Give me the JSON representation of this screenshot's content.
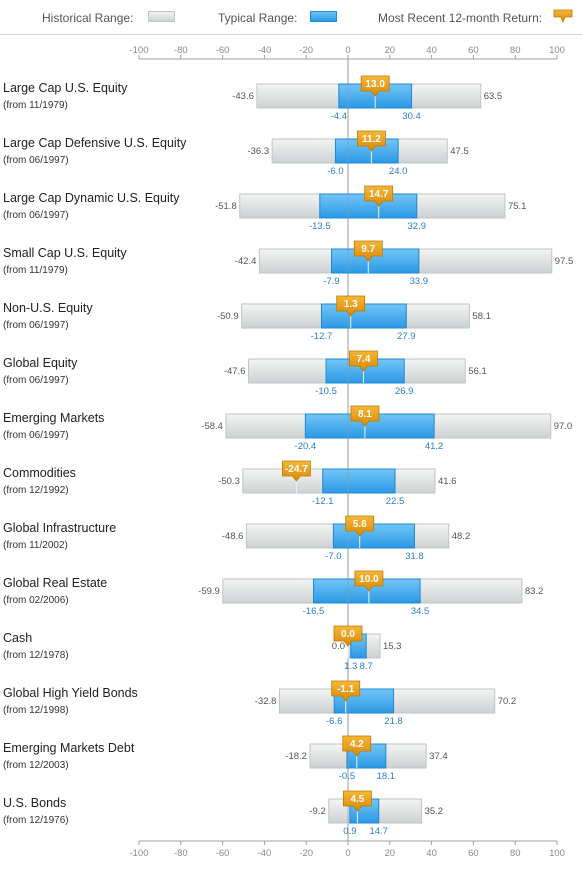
{
  "legend": {
    "historical": "Historical Range:",
    "typical": "Typical Range:",
    "recent": "Most Recent 12-month Return:"
  },
  "colors": {
    "historical": "#d7dbdb",
    "typical": "#3aa9f0",
    "recent": "#e89b0c",
    "axis": "#999999"
  },
  "chart_data": {
    "type": "bar",
    "orientation": "horizontal-range",
    "xlim": [
      -100,
      100
    ],
    "ticks": [
      -100,
      -80,
      -60,
      -40,
      -20,
      0,
      20,
      40,
      60,
      80,
      100
    ],
    "legend": [
      "Historical Range:",
      "Typical Range:",
      "Most Recent 12-month Return:"
    ],
    "categories": [
      {
        "name": "Large Cap U.S. Equity",
        "since": "(from 11/1979)",
        "hist": [
          -43.6,
          63.5
        ],
        "typical": [
          -4.4,
          30.4
        ],
        "recent": 13.0,
        "recent_label": "13.0",
        "hist_labels": [
          "-43.6",
          "63.5"
        ],
        "typical_labels": [
          "-4.4",
          "30.4"
        ]
      },
      {
        "name": "Large Cap Defensive U.S. Equity",
        "since": "(from 06/1997)",
        "hist": [
          -36.3,
          47.5
        ],
        "typical": [
          -6.0,
          24.0
        ],
        "recent": 11.2,
        "recent_label": "11.2",
        "hist_labels": [
          "-36.3",
          "47.5"
        ],
        "typical_labels": [
          "-6.0",
          "24.0"
        ]
      },
      {
        "name": "Large Cap Dynamic U.S. Equity",
        "since": "(from 06/1997)",
        "hist": [
          -51.8,
          75.1
        ],
        "typical": [
          -13.5,
          32.9
        ],
        "recent": 14.7,
        "recent_label": "14.7",
        "hist_labels": [
          "-51.8",
          "75.1"
        ],
        "typical_labels": [
          "-13.5",
          "32.9"
        ]
      },
      {
        "name": "Small Cap U.S. Equity",
        "since": "(from 11/1979)",
        "hist": [
          -42.4,
          97.5
        ],
        "typical": [
          -7.9,
          33.9
        ],
        "recent": 9.7,
        "recent_label": "9.7",
        "hist_labels": [
          "-42.4",
          "97.5"
        ],
        "typical_labels": [
          "-7.9",
          "33.9"
        ]
      },
      {
        "name": "Non-U.S. Equity",
        "since": "(from 06/1997)",
        "hist": [
          -50.9,
          58.1
        ],
        "typical": [
          -12.7,
          27.9
        ],
        "recent": 1.3,
        "recent_label": "1.3",
        "hist_labels": [
          "-50.9",
          "58.1"
        ],
        "typical_labels": [
          "-12.7",
          "27.9"
        ]
      },
      {
        "name": "Global Equity",
        "since": "(from 06/1997)",
        "hist": [
          -47.6,
          56.1
        ],
        "typical": [
          -10.5,
          26.9
        ],
        "recent": 7.4,
        "recent_label": "7.4",
        "hist_labels": [
          "-47.6",
          "56.1"
        ],
        "typical_labels": [
          "-10.5",
          "26.9"
        ]
      },
      {
        "name": "Emerging Markets",
        "since": "(from 06/1997)",
        "hist": [
          -58.4,
          97.0
        ],
        "typical": [
          -20.4,
          41.2
        ],
        "recent": 8.1,
        "recent_label": "8.1",
        "hist_labels": [
          "-58.4",
          "97.0"
        ],
        "typical_labels": [
          "-20.4",
          "41.2"
        ]
      },
      {
        "name": "Commodities",
        "since": "(from 12/1992)",
        "hist": [
          -50.3,
          41.6
        ],
        "typical": [
          -12.1,
          22.5
        ],
        "recent": -24.7,
        "recent_label": "-24.7",
        "hist_labels": [
          "-50.3",
          "41.6"
        ],
        "typical_labels": [
          "-12.1",
          "22.5"
        ]
      },
      {
        "name": "Global Infrastructure",
        "since": "(from 11/2002)",
        "hist": [
          -48.6,
          48.2
        ],
        "typical": [
          -7.0,
          31.8
        ],
        "recent": 5.6,
        "recent_label": "5.6",
        "hist_labels": [
          "-48.6",
          "48.2"
        ],
        "typical_labels": [
          "-7.0",
          "31.8"
        ]
      },
      {
        "name": "Global Real Estate",
        "since": "(from 02/2006)",
        "hist": [
          -59.9,
          83.2
        ],
        "typical": [
          -16.5,
          34.5
        ],
        "recent": 10.0,
        "recent_label": "10.0",
        "hist_labels": [
          "-59.9",
          "83.2"
        ],
        "typical_labels": [
          "-16.5",
          "34.5"
        ]
      },
      {
        "name": "Cash",
        "since": "(from 12/1978)",
        "hist": [
          0.0,
          15.3
        ],
        "typical": [
          1.3,
          8.7
        ],
        "recent": 0.0,
        "recent_label": "0.0",
        "hist_labels": [
          "0.0",
          "15.3"
        ],
        "typical_labels": [
          "1.3",
          "8.7"
        ]
      },
      {
        "name": "Global High Yield Bonds",
        "since": "(from 12/1998)",
        "hist": [
          -32.8,
          70.2
        ],
        "typical": [
          -6.6,
          21.8
        ],
        "recent": -1.1,
        "recent_label": "-1.1",
        "hist_labels": [
          "-32.8",
          "70.2"
        ],
        "typical_labels": [
          "-6.6",
          "21.8"
        ]
      },
      {
        "name": "Emerging Markets Debt",
        "since": "(from 12/2003)",
        "hist": [
          -18.2,
          37.4
        ],
        "typical": [
          -0.5,
          18.1
        ],
        "recent": 4.2,
        "recent_label": "4.2",
        "hist_labels": [
          "-18.2",
          "37.4"
        ],
        "typical_labels": [
          "-0.5",
          "18.1"
        ]
      },
      {
        "name": "U.S. Bonds",
        "since": "(from 12/1976)",
        "hist": [
          -9.2,
          35.2
        ],
        "typical": [
          0.9,
          14.7
        ],
        "recent": 4.5,
        "recent_label": "4.5",
        "hist_labels": [
          "-9.2",
          "35.2"
        ],
        "typical_labels": [
          "0.9",
          "14.7"
        ]
      }
    ]
  }
}
